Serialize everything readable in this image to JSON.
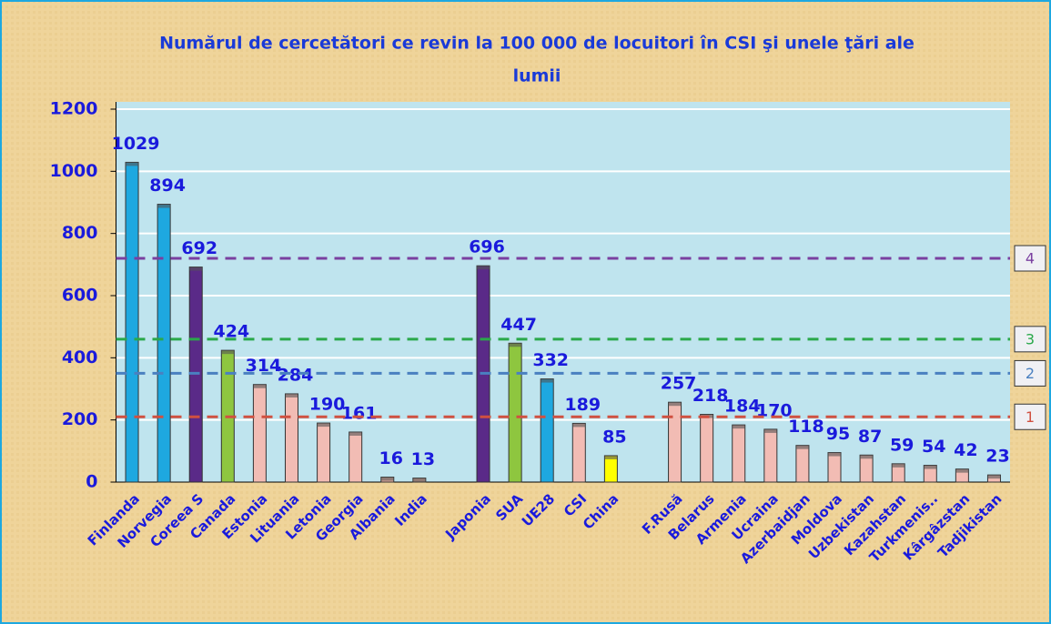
{
  "chart_data": {
    "type": "bar",
    "title": [
      "Numărul de cercetători ce revin la 100 000 de locuitori în CSI şi unele ţări ale",
      "lumii"
    ],
    "categories": [
      "Finlanda",
      "Norvegia",
      "Coreea S",
      "Canada",
      "Estonia",
      "Lituania",
      "Letonia",
      "Georgia",
      "Albania",
      "India",
      null,
      "Japonia",
      "SUA",
      "UE28",
      "CSI",
      "China",
      null,
      "F.Rusă",
      "Belarus",
      "Armenia",
      "Ucraina",
      "Azerbaidjan",
      "Moldova",
      "Uzbekistan",
      "Kazahstan",
      "Turkmenis..",
      "Kârgâzstan",
      "Tadjikistan"
    ],
    "values": [
      1029,
      894,
      692,
      424,
      314,
      284,
      190,
      161,
      16,
      13,
      null,
      696,
      447,
      332,
      189,
      85,
      null,
      257,
      218,
      184,
      170,
      118,
      95,
      87,
      59,
      54,
      42,
      23
    ],
    "colors": [
      "#1ea8e0",
      "#1ea8e0",
      "#5a2a88",
      "#8ec63f",
      "#f2bcb4",
      "#f2bcb4",
      "#f2bcb4",
      "#f2bcb4",
      "#e8b0a0",
      "#e8b0a0",
      null,
      "#5a2a88",
      "#8ec63f",
      "#1ea8e0",
      "#f2bcb4",
      "#ffff00",
      null,
      "#f2bcb4",
      "#f2bcb4",
      "#f2bcb4",
      "#f2bcb4",
      "#f2bcb4",
      "#f2bcb4",
      "#f2bcb4",
      "#f2bcb4",
      "#f2bcb4",
      "#f2bcb4",
      "#f2bcb4"
    ],
    "ylim": [
      0,
      1200
    ],
    "yticks": [
      0,
      200,
      400,
      600,
      800,
      1000,
      1200
    ],
    "grid": true,
    "reference_lines": [
      {
        "label": "4",
        "value": 720,
        "color": "#7a3fa0"
      },
      {
        "label": "3",
        "value": 460,
        "color": "#2aa84a"
      },
      {
        "label": "2",
        "value": 350,
        "color": "#4a80c0"
      },
      {
        "label": "1",
        "value": 210,
        "color": "#d05040"
      }
    ]
  }
}
